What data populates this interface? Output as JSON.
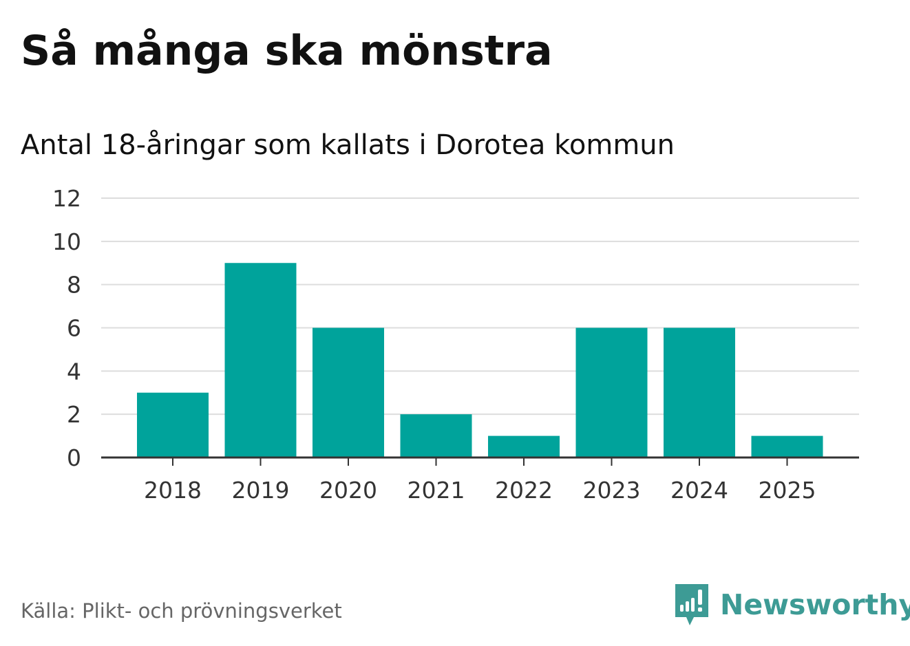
{
  "chart_data": {
    "type": "bar",
    "title": "Så många ska mönstra",
    "subtitle": "Antal 18-åringar som kallats i Dorotea kommun",
    "categories": [
      "2018",
      "2019",
      "2020",
      "2021",
      "2022",
      "2023",
      "2024",
      "2025"
    ],
    "series": [
      {
        "values": [
          3,
          9,
          6,
          2,
          1,
          6,
          6,
          1
        ]
      }
    ],
    "yticks": [
      "0",
      "2",
      "4",
      "6",
      "8",
      "10",
      "12"
    ],
    "ylim": [
      0,
      12
    ],
    "grid": true,
    "bar_color": "#00a39b"
  },
  "footer": {
    "source": "Källa: Plikt- och prövningsverket",
    "brand": "Newsworthy",
    "brand_color": "#3d9b95",
    "brand_icon": "newsworthy-logo-icon"
  }
}
